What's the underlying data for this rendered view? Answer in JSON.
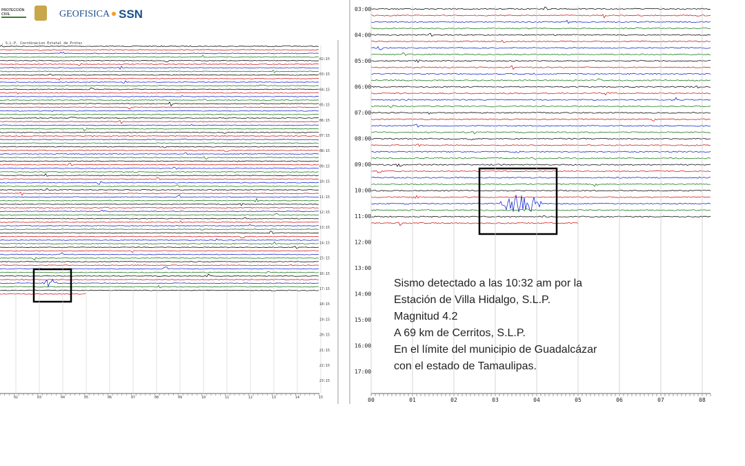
{
  "logos": {
    "proteccion": "PROTECCIÓN",
    "civil": "CIVIL",
    "geofisica": "GEOFISICA",
    "ssn": "SSN"
  },
  "left_panel": {
    "header": ", S.L.P. Coordinacion Estatal de Protec",
    "hour_labels": [
      "02:15",
      "03:15",
      "04:15",
      "05:15",
      "06:15",
      "07:15",
      "08:15",
      "09:15",
      "10:15",
      "11:15",
      "12:15",
      "13:15",
      "14:15",
      "15:15",
      "16:15",
      "17:15",
      "18:15",
      "19:15",
      "20:15",
      "21:15",
      "22:15",
      "23:15"
    ],
    "minute_labels": [
      "02",
      "03",
      "04",
      "05",
      "06",
      "07",
      "08",
      "09",
      "10",
      "11",
      "12",
      "13",
      "14",
      "15"
    ]
  },
  "right_panel": {
    "hour_labels": [
      "03:00",
      "04:00",
      "05:00",
      "06:00",
      "07:00",
      "08:00",
      "09:00",
      "10:00",
      "11:00",
      "12:00",
      "13:00",
      "14:00",
      "15:00",
      "16:00",
      "17:00"
    ],
    "minute_labels": [
      "00",
      "01",
      "02",
      "03",
      "04",
      "05",
      "06",
      "07",
      "08"
    ],
    "annotation": [
      "Sismo detectado a las 10:32 am por la",
      "Estación de Villa Hidalgo, S.L.P.",
      "Magnitud 4.2",
      "A 69 km de Cerritos, S.L.P.",
      "En el límite del municipio de Guadalcázar",
      "con el estado de Tamaulipas."
    ]
  }
}
